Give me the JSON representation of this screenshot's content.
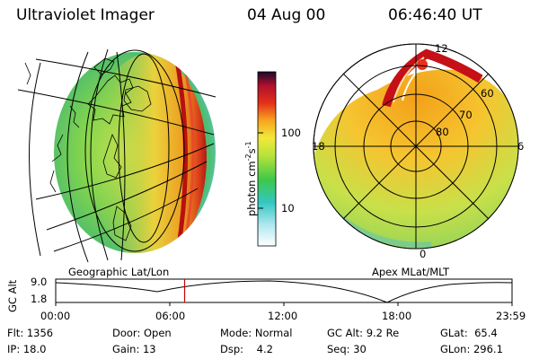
{
  "header": {
    "title": "Ultraviolet Imager",
    "date": "04 Aug 00",
    "time": "06:46:40 UT"
  },
  "left_panel": {
    "label": "Geographic Lat/Lon"
  },
  "right_panel": {
    "label": "Apex MLat/MLT",
    "mlt_labels": {
      "top": "12",
      "left": "18",
      "right": "6",
      "bottom": "0"
    },
    "lat_labels": [
      "60",
      "70",
      "80"
    ]
  },
  "colorbar": {
    "ticks": [
      "100",
      "10"
    ],
    "unit_prefix": "photon cm",
    "unit_exp1": "-2",
    "unit_mid": "s",
    "unit_exp2": "-1"
  },
  "altitude_plot": {
    "ylabel": "GC Alt",
    "yticks": [
      "9.0",
      "1.8"
    ],
    "xticks": [
      "00:00",
      "06:00",
      "12:00",
      "18:00",
      "23:59"
    ],
    "marker_time_hours": 6.78,
    "marker_color": "#d00000"
  },
  "info": {
    "row1": {
      "flt_label": "Flt:",
      "flt_value": "1356",
      "door_label": "Door:",
      "door_value": "Open",
      "mode_label": "Mode:",
      "mode_value": "Normal",
      "gcalt_label": "GC Alt:",
      "gcalt_value": "9.2 Re",
      "glat_label": "GLat:",
      "glat_value": "65.4"
    },
    "row2": {
      "ip_label": "IP:",
      "ip_value": "18.0",
      "gain_label": "Gain:",
      "gain_value": "13",
      "dsp_label": "Dsp:",
      "dsp_value": "4.2",
      "seq_label": "Seq:",
      "seq_value": "30",
      "glon_label": "GLon:",
      "glon_value": "296.1"
    }
  }
}
